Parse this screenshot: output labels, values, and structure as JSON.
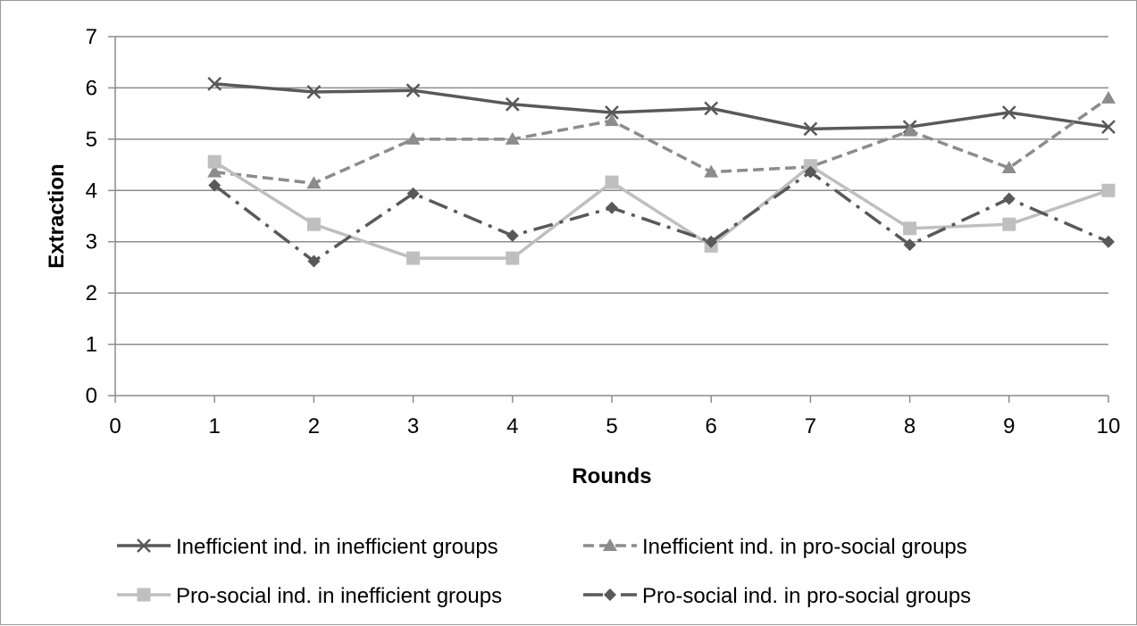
{
  "chart_data": {
    "type": "line",
    "xlabel": "Rounds",
    "ylabel": "Extraction",
    "xlim": [
      0,
      10
    ],
    "ylim": [
      0,
      7
    ],
    "x_ticks": [
      "0",
      "1",
      "2",
      "3",
      "4",
      "5",
      "6",
      "7",
      "8",
      "9",
      "10"
    ],
    "y_ticks": [
      "0",
      "1",
      "2",
      "3",
      "4",
      "5",
      "6",
      "7"
    ],
    "grid": "horizontal",
    "legend_position": "bottom",
    "x": [
      1,
      2,
      3,
      4,
      5,
      6,
      7,
      8,
      9,
      10
    ],
    "series": [
      {
        "name": "Inefficient ind. in inefficient groups",
        "values": [
          6.08,
          5.92,
          5.95,
          5.68,
          5.52,
          5.6,
          5.2,
          5.24,
          5.52,
          5.24
        ],
        "color": "#595959",
        "dash": "solid",
        "marker": "x"
      },
      {
        "name": "Inefficient ind. in pro-social groups",
        "values": [
          4.36,
          4.14,
          5.0,
          5.0,
          5.36,
          4.36,
          4.46,
          5.16,
          4.44,
          5.8
        ],
        "color": "#8c8c8c",
        "dash": "dashed",
        "marker": "triangle"
      },
      {
        "name": "Pro-social ind. in inefficient groups",
        "values": [
          4.56,
          3.34,
          2.68,
          2.68,
          4.16,
          2.92,
          4.48,
          3.26,
          3.34,
          4.0
        ],
        "color": "#bfbfbf",
        "dash": "solid",
        "marker": "square"
      },
      {
        "name": "Pro-social ind. in pro-social groups",
        "values": [
          4.1,
          2.62,
          3.94,
          3.12,
          3.66,
          3.0,
          4.36,
          2.94,
          3.84,
          3.0
        ],
        "color": "#595959",
        "dash": "dashdot",
        "marker": "diamond"
      }
    ]
  }
}
